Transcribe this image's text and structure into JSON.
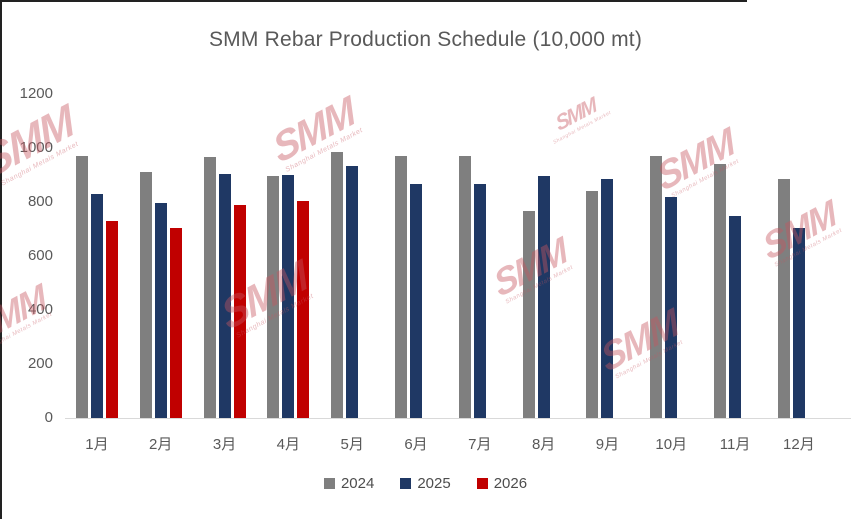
{
  "chart_data": {
    "type": "bar",
    "title": "SMM Rebar Production Schedule (10,000 mt)",
    "categories": [
      "1月",
      "2月",
      "3月",
      "4月",
      "5月",
      "6月",
      "7月",
      "8月",
      "9月",
      "10月",
      "11月",
      "12月"
    ],
    "series": [
      {
        "name": "2024",
        "color": "#7F7F7F",
        "values": [
          970,
          910,
          965,
          895,
          985,
          970,
          970,
          765,
          840,
          970,
          940,
          885
        ]
      },
      {
        "name": "2025",
        "color": "#1F3864",
        "values": [
          830,
          795,
          905,
          900,
          935,
          865,
          865,
          895,
          885,
          820,
          750,
          705
        ]
      },
      {
        "name": "2026",
        "color": "#C00000",
        "values": [
          730,
          705,
          790,
          805,
          null,
          null,
          null,
          null,
          null,
          null,
          null,
          null
        ]
      }
    ],
    "ylim": [
      0,
      1200
    ],
    "ytick_interval": 200,
    "yticks": [
      "0",
      "200",
      "400",
      "600",
      "800",
      "1000",
      "1200"
    ],
    "grid": false,
    "legend_position": "bottom"
  },
  "watermark": {
    "text": "SMM",
    "subtext": "Shanghai Metals Market",
    "color": "#C75560"
  }
}
